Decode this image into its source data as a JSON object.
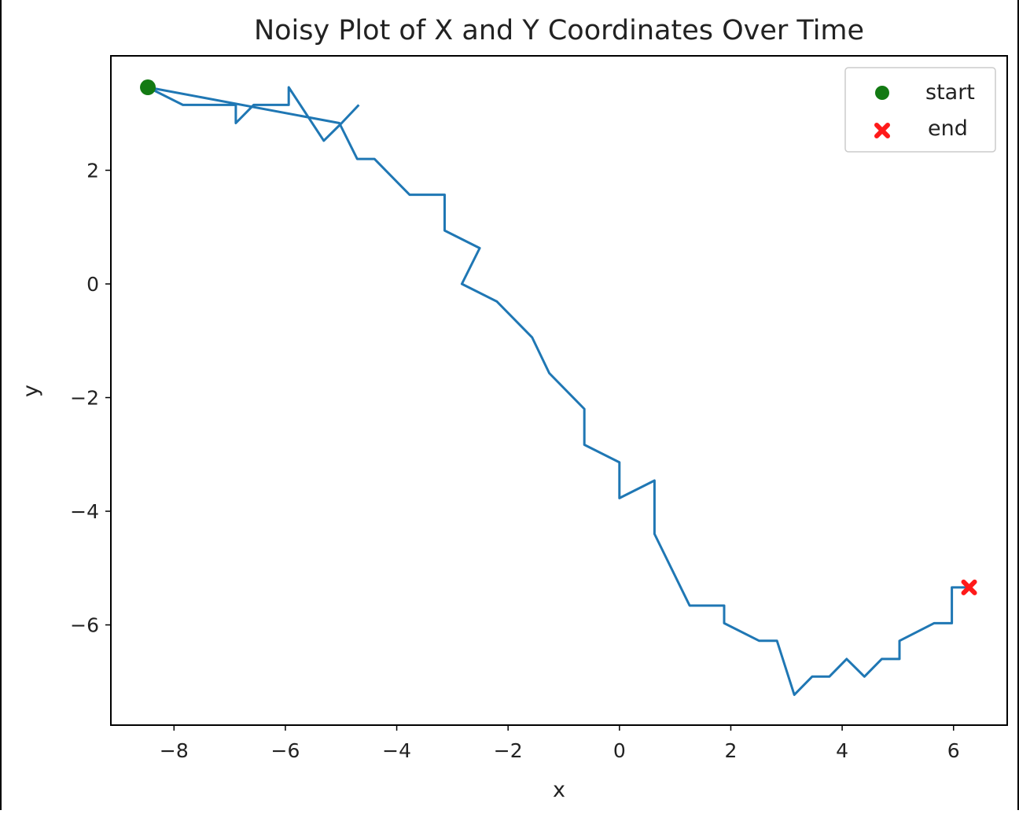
{
  "chart_data": {
    "type": "line",
    "title": "Noisy Plot of X and Y Coordinates Over Time",
    "xlabel": "x",
    "ylabel": "y",
    "xlim": [
      -9.12,
      6.95
    ],
    "ylim": [
      -7.75,
      4.0
    ],
    "xticks": [
      {
        "value": -8,
        "label": "−8"
      },
      {
        "value": -6,
        "label": "−6"
      },
      {
        "value": -4,
        "label": "−4"
      },
      {
        "value": -2,
        "label": "−2"
      },
      {
        "value": 0,
        "label": "0"
      },
      {
        "value": 2,
        "label": "2"
      },
      {
        "value": 4,
        "label": "4"
      },
      {
        "value": 6,
        "label": "6"
      }
    ],
    "yticks": [
      {
        "value": 2,
        "label": "2"
      },
      {
        "value": 0,
        "label": "0"
      },
      {
        "value": -2,
        "label": "−2"
      },
      {
        "value": -4,
        "label": "−4"
      },
      {
        "value": -6,
        "label": "−6"
      }
    ],
    "grid": false,
    "legend_position": "top-right",
    "series": [
      {
        "color": "#1f77b4",
        "x": [
          -4.68,
          -4.99,
          -5.31,
          -5.94,
          -5.94,
          -6.57,
          -6.89,
          -6.89,
          -7.52,
          -7.84,
          -8.47,
          -5.03,
          -4.71,
          -4.4,
          -3.77,
          -3.14,
          -3.14,
          -2.51,
          -2.83,
          -2.2,
          -1.57,
          -1.26,
          -0.63,
          -0.63,
          0.0,
          0.0,
          0.63,
          0.63,
          1.26,
          1.88,
          1.88,
          2.51,
          2.83,
          3.14,
          3.46,
          3.77,
          4.08,
          4.4,
          4.71,
          5.03,
          5.03,
          5.65,
          5.97,
          5.97,
          6.28
        ],
        "y": [
          3.15,
          2.83,
          2.52,
          3.46,
          3.15,
          3.15,
          2.83,
          3.15,
          3.15,
          3.15,
          3.46,
          2.83,
          2.2,
          2.2,
          1.57,
          1.57,
          0.94,
          0.63,
          0.0,
          -0.31,
          -0.94,
          -1.57,
          -2.2,
          -2.83,
          -3.14,
          -3.77,
          -3.46,
          -4.4,
          -5.66,
          -5.66,
          -5.97,
          -6.28,
          -6.28,
          -7.23,
          -6.91,
          -6.91,
          -6.6,
          -6.91,
          -6.6,
          -6.6,
          -6.28,
          -5.97,
          -5.97,
          -5.34,
          -5.34
        ]
      }
    ],
    "markers": [
      {
        "name": "start",
        "x": -8.47,
        "y": 3.46,
        "color": "#137a13",
        "shape": "circle"
      },
      {
        "name": "end",
        "x": 6.28,
        "y": -5.34,
        "color": "#ff1a1a",
        "shape": "x"
      }
    ]
  }
}
